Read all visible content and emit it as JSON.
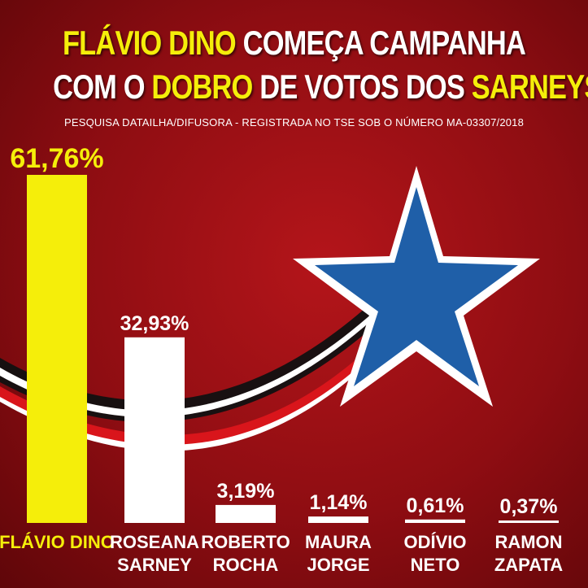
{
  "headline": {
    "line1_a": "FLÁVIO DINO",
    "line1_b": " COMEÇA CAMPANHA",
    "line2_a": "COM O ",
    "line2_b": "DOBRO",
    "line2_c": " DE VOTOS DOS ",
    "line2_d": "SARNEYS"
  },
  "subtitle": "PESQUISA DATAILHA/DIFUSORA - REGISTRADA NO TSE SOB O NÚMERO MA-03307/2018",
  "colors": {
    "highlight": "#f5ee0a",
    "white": "#ffffff",
    "background": "#a01015",
    "star": "#1f5fa8"
  },
  "chart_data": {
    "type": "bar",
    "categories": [
      "FLÁVIO DINO",
      "ROSEANA SARNEY",
      "ROBERTO ROCHA",
      "MAURA JORGE",
      "ODÍVIO NETO",
      "RAMON ZAPATA"
    ],
    "category_lines": [
      [
        "FLÁVIO DINO"
      ],
      [
        "ROSEANA",
        "SARNEY"
      ],
      [
        "ROBERTO",
        "ROCHA"
      ],
      [
        "MAURA",
        "JORGE"
      ],
      [
        "ODÍVIO",
        "NETO"
      ],
      [
        "RAMON",
        "ZAPATA"
      ]
    ],
    "values": [
      61.76,
      32.93,
      3.19,
      1.14,
      0.61,
      0.37
    ],
    "value_labels": [
      "61,76%",
      "32,93%",
      "3,19%",
      "1,14%",
      "0,61%",
      "0,37%"
    ],
    "bar_colors": [
      "#f5ee0a",
      "#ffffff",
      "#ffffff",
      "#ffffff",
      "#ffffff",
      "#ffffff"
    ],
    "ylim": [
      0,
      61.76
    ],
    "grid": false,
    "legend": "none"
  }
}
